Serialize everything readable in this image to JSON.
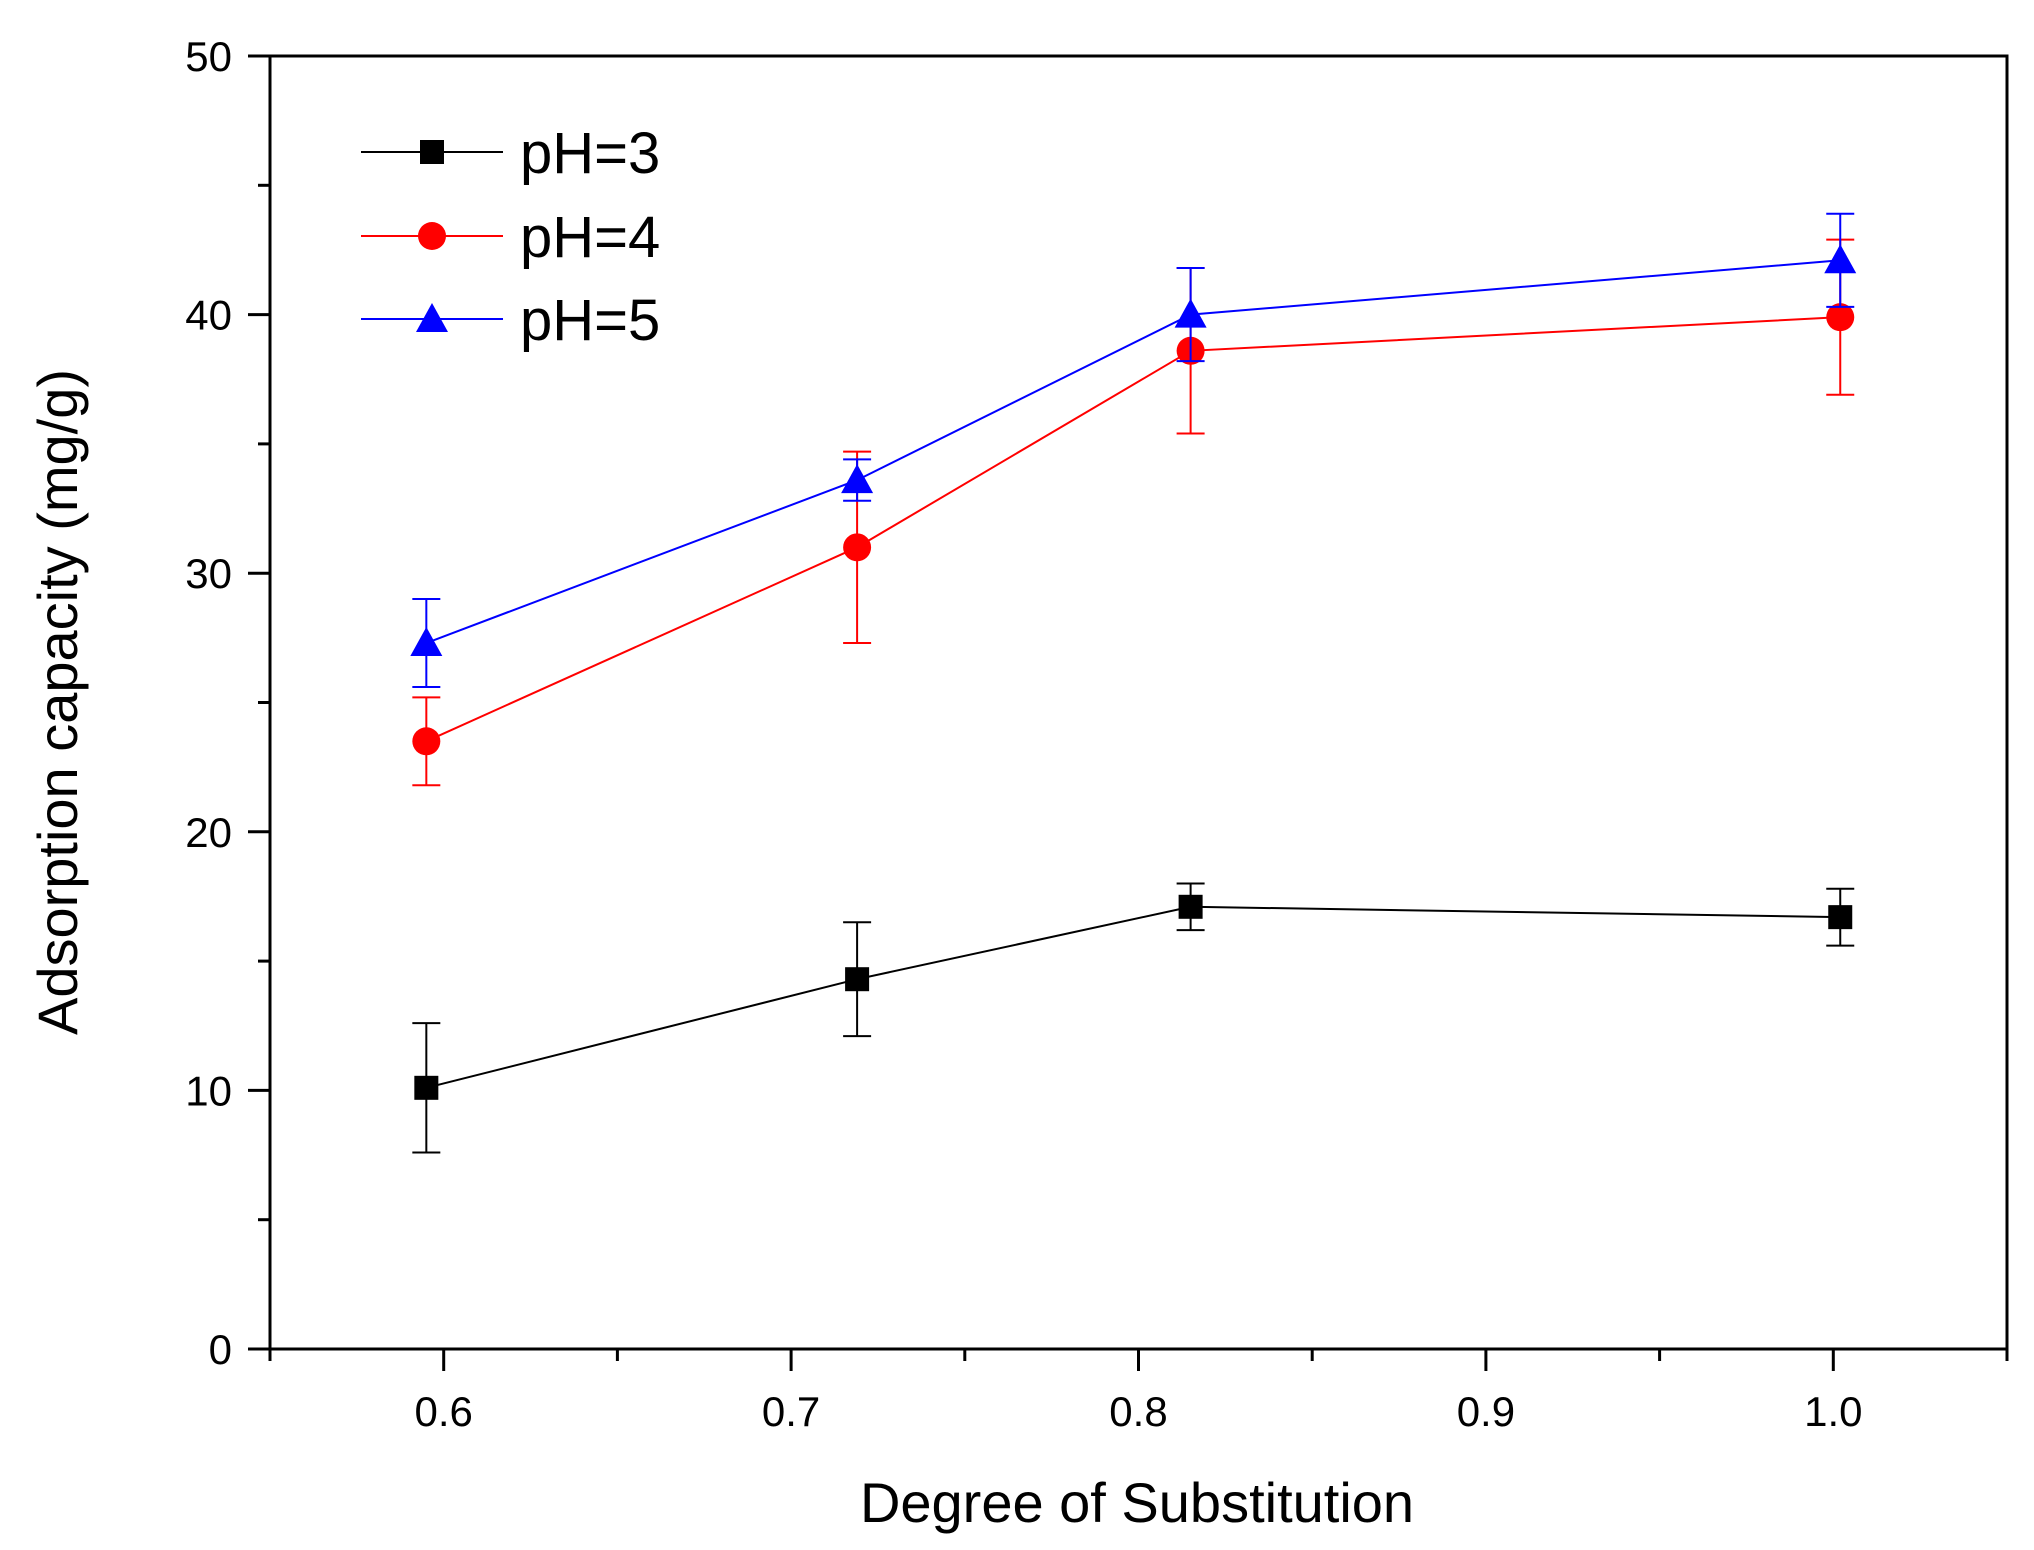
{
  "chart_data": {
    "type": "line",
    "title": "",
    "xlabel": "Degree of Substitution",
    "ylabel": "Adsorption capacity (mg/g)",
    "xlim": [
      0.55,
      1.05
    ],
    "ylim": [
      0,
      50
    ],
    "xticks": [
      0.6,
      0.7,
      0.8,
      0.9,
      1.0
    ],
    "xtick_labels": [
      "0.6",
      "0.7",
      "0.8",
      "0.9",
      "1.0"
    ],
    "xminor": [
      0.55,
      0.65,
      0.75,
      0.85,
      0.95,
      1.05
    ],
    "yticks": [
      0,
      10,
      20,
      30,
      40,
      50
    ],
    "ytick_labels": [
      "0",
      "10",
      "20",
      "30",
      "40",
      "50"
    ],
    "yminor": [
      5,
      15,
      25,
      35,
      45
    ],
    "grid": false,
    "legend_position": "top-left",
    "x": [
      0.595,
      0.719,
      0.815,
      1.002
    ],
    "series": [
      {
        "name": "pH=3",
        "color": "#000000",
        "marker": "square",
        "values": [
          10.1,
          14.3,
          17.1,
          16.7
        ],
        "errors": [
          2.5,
          2.2,
          0.9,
          1.1
        ]
      },
      {
        "name": "pH=4",
        "color": "#ff0000",
        "marker": "circle",
        "values": [
          23.5,
          31.0,
          38.6,
          39.9
        ],
        "errors": [
          1.7,
          3.7,
          3.2,
          3.0
        ]
      },
      {
        "name": "pH=5",
        "color": "#0000ff",
        "marker": "triangle",
        "values": [
          27.3,
          33.6,
          40.0,
          42.1
        ],
        "errors": [
          1.7,
          0.8,
          1.8,
          1.8
        ]
      }
    ]
  }
}
